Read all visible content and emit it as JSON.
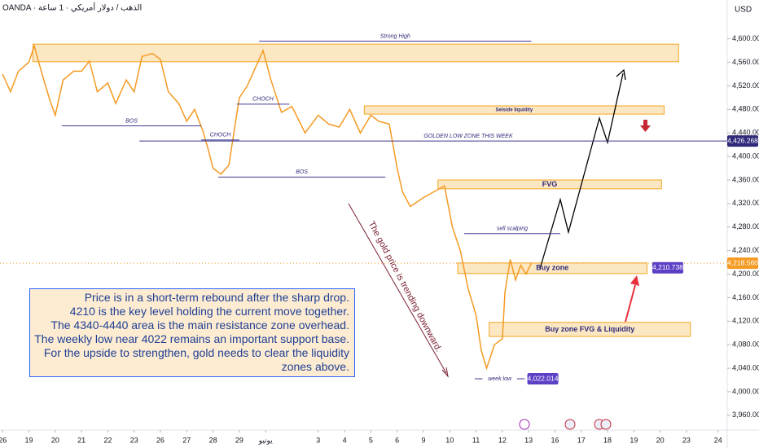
{
  "header": "OANDA · الذهب / دولار أمريكي · 1 ساعة",
  "currency": "USD",
  "chart_data": {
    "type": "line",
    "xlim": [
      -0.1,
      27.55
    ],
    "ylim": [
      3939,
      4666
    ],
    "xticks": [
      {
        "value": 0,
        "label": "26"
      },
      {
        "value": 1,
        "label": "19"
      },
      {
        "value": 2,
        "label": "20"
      },
      {
        "value": 3,
        "label": "21"
      },
      {
        "value": 4,
        "label": "22"
      },
      {
        "value": 5,
        "label": "23"
      },
      {
        "value": 6,
        "label": "26"
      },
      {
        "value": 7,
        "label": "27"
      },
      {
        "value": 8,
        "label": "28"
      },
      {
        "value": 9,
        "label": "29"
      },
      {
        "value": 10,
        "label": "يونيو"
      },
      {
        "value": 12,
        "label": "3"
      },
      {
        "value": 13,
        "label": "4"
      },
      {
        "value": 14,
        "label": "5"
      },
      {
        "value": 15,
        "label": "6"
      },
      {
        "value": 16,
        "label": "9"
      },
      {
        "value": 17,
        "label": "10"
      },
      {
        "value": 18,
        "label": "11"
      },
      {
        "value": 19,
        "label": "12"
      },
      {
        "value": 20,
        "label": "13"
      },
      {
        "value": 21,
        "label": "16"
      },
      {
        "value": 22,
        "label": "17"
      },
      {
        "value": 23,
        "label": "18"
      },
      {
        "value": 24,
        "label": "19"
      },
      {
        "value": 25,
        "label": "20"
      },
      {
        "value": 26,
        "label": "23"
      },
      {
        "value": 27.2,
        "label": "24"
      }
    ],
    "yticks": [
      {
        "value": 3960,
        "label": "3,960.000"
      },
      {
        "value": 4000,
        "label": "4,000.000"
      },
      {
        "value": 4040,
        "label": "4,040.000"
      },
      {
        "value": 4080,
        "label": "4,080.000"
      },
      {
        "value": 4120,
        "label": "4,120.000"
      },
      {
        "value": 4160,
        "label": "4,160.000"
      },
      {
        "value": 4200,
        "label": "4,200.000"
      },
      {
        "value": 4240,
        "label": "4,240.000"
      },
      {
        "value": 4280,
        "label": "4,280.000"
      },
      {
        "value": 4320,
        "label": "4,320.000"
      },
      {
        "value": 4360,
        "label": "4,360.000"
      },
      {
        "value": 4400,
        "label": "4,400.000"
      },
      {
        "value": 4440,
        "label": "4,440.000"
      },
      {
        "value": 4480,
        "label": "4,480.000"
      },
      {
        "value": 4520,
        "label": "4,520.000"
      },
      {
        "value": 4560,
        "label": "4,560.000"
      },
      {
        "value": 4600,
        "label": "4,600.000"
      }
    ],
    "series": [
      {
        "color": "#f59a23",
        "x": [
          0,
          0.3,
          0.6,
          1,
          1.2,
          1.5,
          1.8,
          2,
          2.3,
          2.7,
          3,
          3.3,
          3.6,
          4,
          4.3,
          4.7,
          5,
          5.3,
          5.7,
          6,
          6.3,
          6.7,
          7,
          7.3,
          7.6,
          7.8,
          8,
          8.3,
          8.6,
          9,
          9.3,
          9.6,
          9.9,
          10.2,
          10.6,
          11,
          11.5,
          12,
          12.4,
          12.8,
          13.2,
          13.6,
          14,
          14.3,
          14.7,
          15,
          15.2,
          15.5,
          16,
          16.4,
          16.8,
          17.1,
          17.4,
          17.7,
          18,
          18.2,
          18.4,
          18.7,
          19,
          19.1,
          19.3,
          19.5,
          19.7,
          19.9,
          20.1
        ],
        "values": [
          4540,
          4510,
          4545,
          4560,
          4588,
          4540,
          4495,
          4470,
          4530,
          4545,
          4545,
          4562,
          4510,
          4525,
          4490,
          4530,
          4510,
          4570,
          4575,
          4565,
          4510,
          4490,
          4460,
          4480,
          4445,
          4415,
          4380,
          4370,
          4385,
          4500,
          4520,
          4550,
          4580,
          4530,
          4475,
          4485,
          4440,
          4470,
          4455,
          4450,
          4480,
          4440,
          4470,
          4460,
          4455,
          4380,
          4340,
          4315,
          4330,
          4340,
          4350,
          4280,
          4240,
          4175,
          4130,
          4070,
          4040,
          4080,
          4090,
          4170,
          4225,
          4190,
          4215,
          4200,
          4218.56
        ]
      }
    ],
    "zones": [
      {
        "x": [
          1.15,
          25.7
        ],
        "y": [
          4561,
          4591
        ]
      },
      {
        "label": "Selside liquidity",
        "x": [
          13.75,
          25.15
        ],
        "y": [
          4472,
          4486
        ]
      },
      {
        "label": "FVG",
        "x": [
          16.55,
          25.05
        ],
        "y": [
          4345,
          4360
        ]
      },
      {
        "label": "Buy zone",
        "x": [
          17.3,
          24.5
        ],
        "y": [
          4201,
          4219
        ]
      },
      {
        "label": "Buy zone FVG & Liquidity",
        "x": [
          18.5,
          26.15
        ],
        "y": [
          4094,
          4118
        ]
      }
    ],
    "lines": [
      {
        "label": "Strong High",
        "x": [
          9.75,
          20.1
        ],
        "y": 4596
      },
      {
        "label": "BOS",
        "x": [
          2.25,
          7.55
        ],
        "y": 4452
      },
      {
        "label": "CHOCH",
        "x": [
          7.55,
          9.0
        ],
        "y": 4428
      },
      {
        "label": "CHOCH",
        "x": [
          8.9,
          10.9
        ],
        "y": 4489
      },
      {
        "label": "BOS",
        "x": [
          8.2,
          14.55
        ],
        "y": 4365
      },
      {
        "label": "GOLDEN LOW ZONE THIS WEEK",
        "x": [
          5.2,
          27.55
        ],
        "y": 4426.268
      },
      {
        "label": "sell scalping",
        "x": [
          17.55,
          21.2
        ],
        "y": 4269
      },
      {
        "label": "week low",
        "x": [
          17.95,
          19.85
        ],
        "y": 4022.014
      }
    ],
    "price_tags": [
      {
        "value": 4426.268,
        "label": "4,426.268",
        "color": "#2f2a7a"
      },
      {
        "value": 4218.56,
        "label": "4,218.560",
        "color": "#f59a23"
      },
      {
        "value": 4210.738,
        "label": "4,210.738",
        "color": "#5b3fc4",
        "x": 24.7
      },
      {
        "value": 4022.014,
        "label": "4,022.014",
        "color": "#5b3fc4",
        "x": 19.95
      }
    ],
    "trend_note": "The gold price is trending downward.",
    "note": [
      "Price is in a short-term rebound after the sharp drop.",
      "4210 is the key level holding the current move together.",
      "The 4340-4440 area is the main resistance zone overhead.",
      "The weekly low near 4022 remains an important support base.",
      "For the upside to strengthen, gold needs to clear the liquidity",
      "zones above."
    ]
  }
}
